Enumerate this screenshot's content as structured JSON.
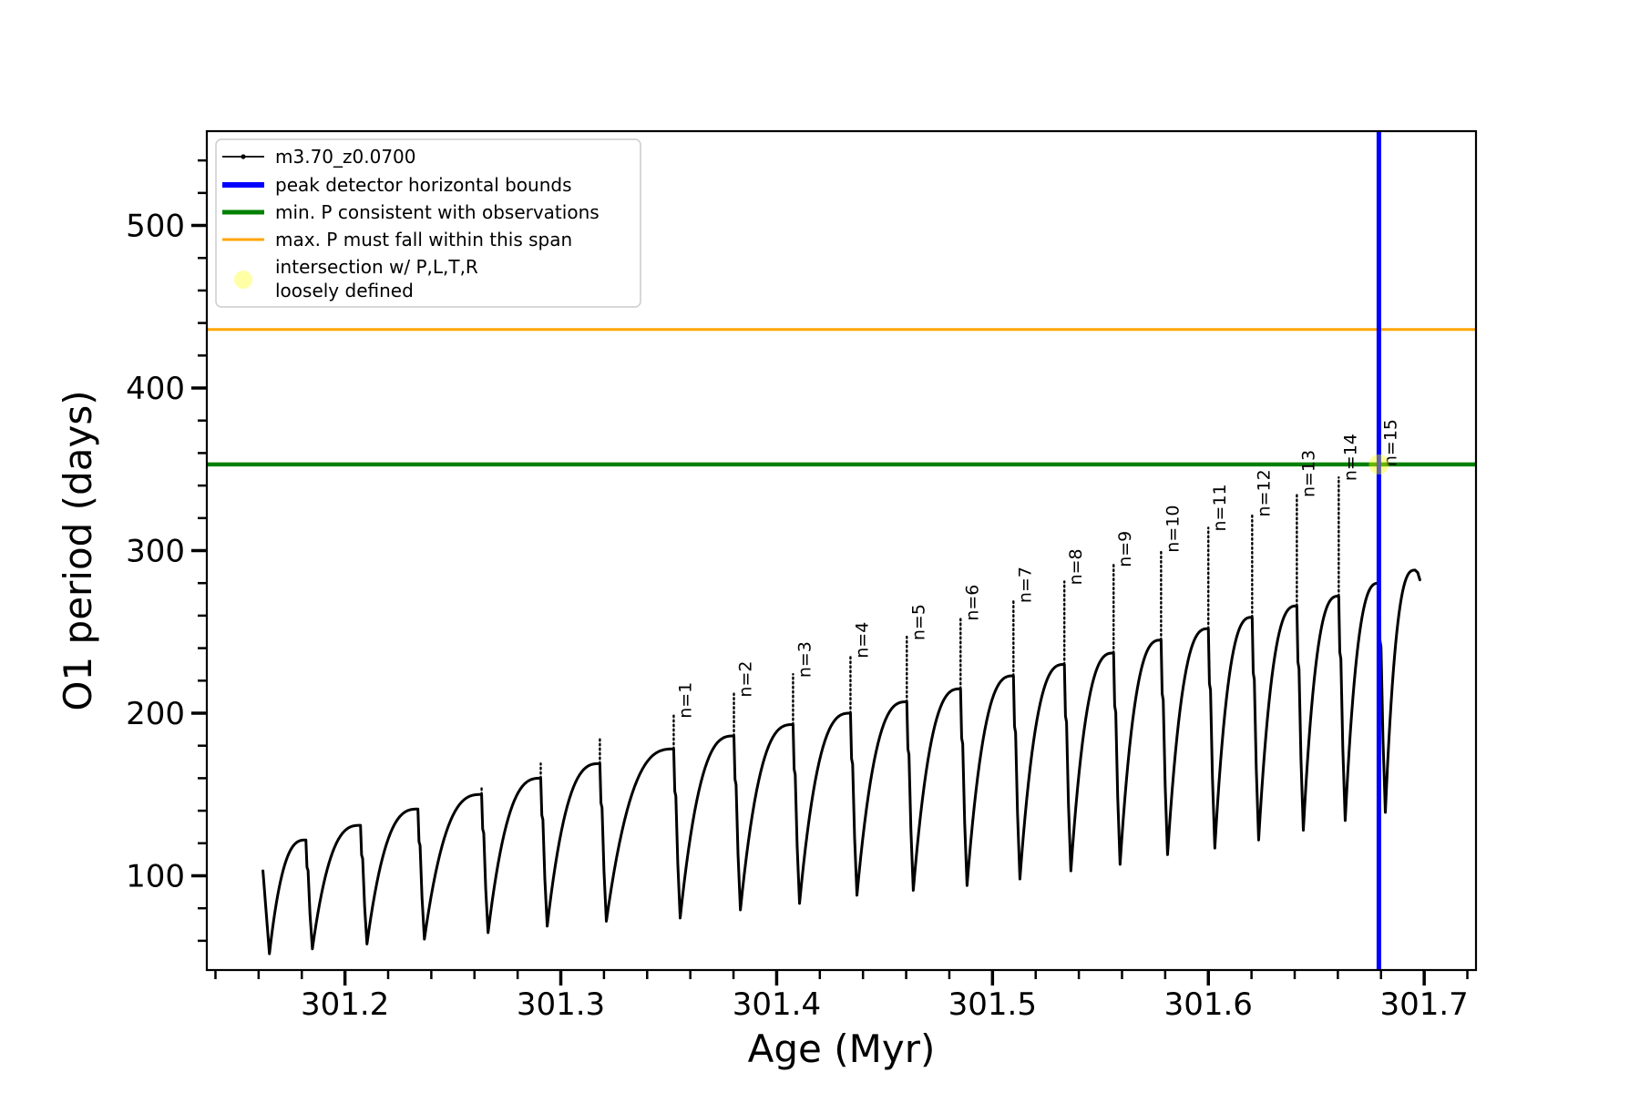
{
  "figure": {
    "background": "#ffffff"
  },
  "axes": {
    "xlabel": "Age (Myr)",
    "ylabel": "O1 period (days)",
    "xlim": [
      301.136,
      301.724
    ],
    "ylim": [
      42,
      558
    ],
    "x_major_ticks": [
      301.2,
      301.3,
      301.4,
      301.5,
      301.6,
      301.7
    ],
    "x_tick_labels": [
      "301.2",
      "301.3",
      "301.4",
      "301.5",
      "301.6",
      "301.7"
    ],
    "x_minor_start": 301.14,
    "x_minor_step": 0.02,
    "y_major_ticks": [
      100,
      200,
      300,
      400,
      500
    ],
    "y_tick_labels": [
      "100",
      "200",
      "300",
      "400",
      "500"
    ],
    "y_minor_start": 60,
    "y_minor_step": 20,
    "grid": false
  },
  "legend": {
    "position": "upper left",
    "items": [
      {
        "label": "m3.70_z0.0700",
        "sample": "line-marker",
        "color": "#000000",
        "width": 1.8
      },
      {
        "label": "peak detector horizontal bounds",
        "sample": "line",
        "color": "#0000ff",
        "width": 6
      },
      {
        "label": "min. P consistent with observations",
        "sample": "line",
        "color": "#008000",
        "width": 5
      },
      {
        "label": "max. P must fall within this span",
        "sample": "line",
        "color": "#ffa500",
        "width": 3
      },
      {
        "label": "intersection w/ P,L,T,R\nloosely defined",
        "sample": "circle",
        "color": "#ffff00",
        "opacity": 0.35
      }
    ]
  },
  "chart_data": {
    "type": "line",
    "title": "",
    "xlabel": "Age (Myr)",
    "ylabel": "O1 period (days)",
    "xlim": [
      301.136,
      301.724
    ],
    "ylim": [
      42,
      558
    ],
    "series_name": "m3.70_z0.0700",
    "series_color": "#000000",
    "start_point": {
      "age": 301.162,
      "value": 103
    },
    "first_min": {
      "age": 301.165,
      "value": 52
    },
    "cycles": [
      {
        "peak_age": 301.1819,
        "hump": 122,
        "spike": null,
        "min_after": 55,
        "label": null
      },
      {
        "peak_age": 301.2072,
        "hump": 131,
        "spike": null,
        "min_after": 58,
        "label": null
      },
      {
        "peak_age": 301.2338,
        "hump": 141,
        "spike": null,
        "min_after": 61,
        "label": null
      },
      {
        "peak_age": 301.2633,
        "hump": 150,
        "spike": 155,
        "min_after": 65,
        "label": null
      },
      {
        "peak_age": 301.2907,
        "hump": 160,
        "spike": 169,
        "min_after": 69,
        "label": null
      },
      {
        "peak_age": 301.3181,
        "hump": 169,
        "spike": 184,
        "min_after": 72,
        "label": null
      },
      {
        "peak_age": 301.3523,
        "hump": 178,
        "spike": 199,
        "min_after": 74,
        "label": "n=1"
      },
      {
        "peak_age": 301.3802,
        "hump": 186,
        "spike": 212,
        "min_after": 79,
        "label": "n=2"
      },
      {
        "peak_age": 301.4076,
        "hump": 193,
        "spike": 224,
        "min_after": 83,
        "label": "n=3"
      },
      {
        "peak_age": 301.4342,
        "hump": 200,
        "spike": 236,
        "min_after": 88,
        "label": "n=4"
      },
      {
        "peak_age": 301.4603,
        "hump": 207,
        "spike": 247,
        "min_after": 91,
        "label": "n=5"
      },
      {
        "peak_age": 301.4852,
        "hump": 215,
        "spike": 259,
        "min_after": 94,
        "label": "n=6"
      },
      {
        "peak_age": 301.5097,
        "hump": 223,
        "spike": 270,
        "min_after": 98,
        "label": "n=7"
      },
      {
        "peak_age": 301.5333,
        "hump": 230,
        "spike": 281,
        "min_after": 103,
        "label": "n=8"
      },
      {
        "peak_age": 301.5561,
        "hump": 237,
        "spike": 292,
        "min_after": 107,
        "label": "n=9"
      },
      {
        "peak_age": 301.5781,
        "hump": 245,
        "spike": 301,
        "min_after": 113,
        "label": "n=10"
      },
      {
        "peak_age": 301.6,
        "hump": 252,
        "spike": 314,
        "min_after": 117,
        "label": "n=11"
      },
      {
        "peak_age": 301.6203,
        "hump": 259,
        "spike": 323,
        "min_after": 122,
        "label": "n=12"
      },
      {
        "peak_age": 301.641,
        "hump": 266,
        "spike": 335,
        "min_after": 128,
        "label": "n=13"
      },
      {
        "peak_age": 301.6604,
        "hump": 272,
        "spike": 345,
        "min_after": 134,
        "label": "n=14"
      },
      {
        "peak_age": 301.679,
        "hump": 280,
        "spike": 354,
        "min_after": 139,
        "label": "n=15"
      }
    ],
    "final_segment": {
      "hump_age": 301.6958,
      "hump": 288,
      "end_age": 301.698,
      "end_value": 282
    },
    "hlines": [
      {
        "value": 436,
        "color": "#ffa500",
        "width": 3,
        "name": "max. P must fall within this span"
      },
      {
        "value": 353,
        "color": "#008000",
        "width": 4.5,
        "name": "min. P consistent with observations"
      }
    ],
    "vlines": [
      {
        "age": 301.679,
        "color": "#0000ff",
        "width": 5,
        "name": "peak detector horizontal bounds"
      }
    ],
    "intersection_marker": {
      "age": 301.679,
      "value": 353,
      "color": "#ffff00",
      "opacity": 0.4,
      "radius": 11
    }
  }
}
